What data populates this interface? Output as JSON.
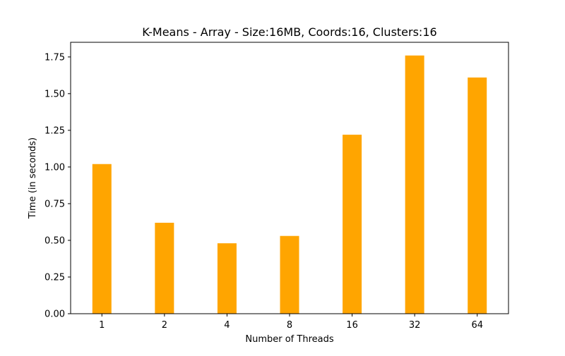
{
  "chart_data": {
    "type": "bar",
    "title": "K-Means - Array - Size:16MB, Coords:16, Clusters:16",
    "xlabel": "Number of Threads",
    "ylabel": "Time (in seconds)",
    "categories": [
      "1",
      "2",
      "4",
      "8",
      "16",
      "32",
      "64"
    ],
    "values": [
      1.02,
      0.62,
      0.48,
      0.53,
      1.22,
      1.76,
      1.61
    ],
    "ylim": [
      0,
      1.85
    ],
    "yticks": [
      0.0,
      0.25,
      0.5,
      0.75,
      1.0,
      1.25,
      1.5,
      1.75
    ],
    "ytick_labels": [
      "0.00",
      "0.25",
      "0.50",
      "0.75",
      "1.00",
      "1.25",
      "1.50",
      "1.75"
    ],
    "bar_color": "#ffa500",
    "grid": false,
    "legend": "none"
  }
}
